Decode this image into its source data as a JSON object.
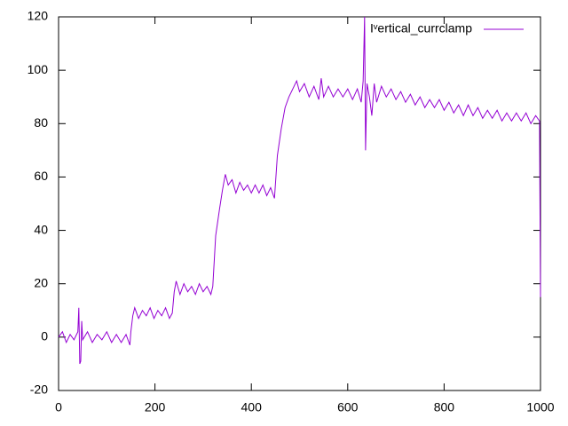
{
  "chart_data": {
    "type": "line",
    "x": [
      0,
      8,
      16,
      24,
      32,
      40,
      42,
      44,
      46,
      48,
      50,
      60,
      70,
      80,
      90,
      100,
      110,
      120,
      130,
      140,
      148,
      150,
      154,
      158,
      166,
      174,
      182,
      190,
      198,
      206,
      214,
      222,
      230,
      236,
      240,
      244,
      252,
      260,
      268,
      276,
      284,
      292,
      300,
      308,
      316,
      320,
      326,
      334,
      340,
      346,
      352,
      360,
      368,
      376,
      384,
      392,
      400,
      408,
      416,
      424,
      432,
      440,
      448,
      454,
      462,
      470,
      478,
      486,
      494,
      500,
      510,
      520,
      530,
      540,
      545,
      550,
      560,
      570,
      580,
      590,
      600,
      610,
      620,
      628,
      632,
      635,
      637,
      640,
      645,
      650,
      655,
      660,
      670,
      680,
      690,
      700,
      710,
      720,
      730,
      740,
      750,
      760,
      770,
      780,
      790,
      800,
      810,
      820,
      830,
      840,
      850,
      860,
      870,
      880,
      890,
      900,
      910,
      920,
      930,
      940,
      950,
      960,
      970,
      980,
      990,
      998,
      1000
    ],
    "series": [
      {
        "name": "Iᵛertical_currclamp",
        "color": "#9400d3",
        "values": [
          0,
          2,
          -2,
          1,
          -1,
          2,
          11,
          -10,
          -9,
          6,
          -1,
          2,
          -2,
          1,
          -1,
          2,
          -2,
          1,
          -2,
          1,
          -3,
          2,
          8,
          11,
          7,
          10,
          8,
          11,
          7,
          10,
          8,
          11,
          7,
          9,
          17,
          21,
          16,
          20,
          17,
          19,
          16,
          20,
          17,
          19,
          16,
          19,
          38,
          48,
          55,
          61,
          57,
          59,
          54,
          58,
          55,
          57,
          54,
          57,
          54,
          57,
          53,
          56,
          52,
          68,
          78,
          86,
          90,
          93,
          96,
          92,
          95,
          90,
          94,
          89,
          97,
          90,
          94,
          90,
          93,
          90,
          93,
          89,
          93,
          88,
          96,
          120,
          70,
          95,
          90,
          83,
          95,
          88,
          94,
          90,
          93,
          89,
          92,
          88,
          91,
          87,
          90,
          86,
          89,
          86,
          89,
          85,
          88,
          84,
          87,
          83,
          87,
          83,
          86,
          82,
          85,
          82,
          85,
          81,
          84,
          81,
          84,
          81,
          84,
          80,
          83,
          81,
          15
        ]
      }
    ],
    "xlim": [
      0,
      1000
    ],
    "ylim": [
      -20,
      120
    ],
    "xticks": [
      0,
      200,
      400,
      600,
      800,
      1000
    ],
    "yticks": [
      -20,
      0,
      20,
      40,
      60,
      80,
      100,
      120
    ]
  }
}
